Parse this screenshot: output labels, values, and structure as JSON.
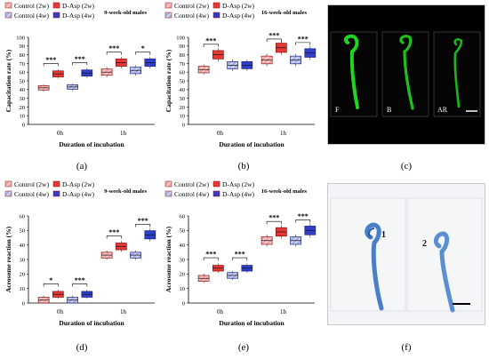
{
  "panel_labels": [
    "(a)",
    "(b)",
    "(c)",
    "(d)",
    "(e)",
    "(f)"
  ],
  "legend": {
    "control_2w": "Control (2w)",
    "daspa_2w": "D-Asp (2w)",
    "control_4w": "Control (4w)",
    "daspa_4w": "D-Asp (4w)"
  },
  "colors": {
    "control_2w": "#f4a7a7",
    "daspa_2w": "#e53935",
    "control_4w": "#aab3e8",
    "daspa_4w": "#2f3fc9",
    "fluorescence": "#1fd61f",
    "stain": "#5b8fd1"
  },
  "chart_data": [
    {
      "type": "box",
      "title": "9-week-old males",
      "ylabel": "Capacitation rate (%)",
      "xlabel": "Duration of incubation",
      "categories": [
        "0h",
        "1h"
      ],
      "ylim": [
        0,
        100
      ],
      "yticks": [
        0,
        10,
        20,
        30,
        40,
        50,
        60,
        70,
        80,
        90,
        100
      ],
      "series": [
        {
          "name": "Control (2w)",
          "values": [
            42,
            60
          ]
        },
        {
          "name": "D-Asp (2w)",
          "values": [
            58,
            71
          ]
        },
        {
          "name": "Control (4w)",
          "values": [
            43,
            62
          ]
        },
        {
          "name": "D-Asp (4w)",
          "values": [
            59,
            71
          ]
        }
      ],
      "significance": [
        [
          "***",
          "***"
        ],
        [
          "***",
          "*"
        ]
      ]
    },
    {
      "type": "box",
      "title": "16-week-old males",
      "ylabel": "Capacitation rate (%)",
      "xlabel": "Duration of incubation",
      "categories": [
        "0h",
        "1h"
      ],
      "ylim": [
        0,
        100
      ],
      "yticks": [
        0,
        10,
        20,
        30,
        40,
        50,
        60,
        70,
        80,
        90,
        100
      ],
      "series": [
        {
          "name": "Control (2w)",
          "values": [
            63,
            74
          ]
        },
        {
          "name": "D-Asp (2w)",
          "values": [
            80,
            88
          ]
        },
        {
          "name": "Control (4w)",
          "values": [
            68,
            74
          ]
        },
        {
          "name": "D-Asp (4w)",
          "values": [
            68,
            82
          ]
        }
      ],
      "significance": [
        [
          "***",
          ""
        ],
        [
          "***",
          "***"
        ]
      ]
    },
    {
      "type": "box",
      "title": "9-week-old males",
      "ylabel": "Acrosome reaction (%)",
      "xlabel": "Duration of incubation",
      "categories": [
        "0h",
        "1h"
      ],
      "ylim": [
        0,
        60
      ],
      "yticks": [
        0,
        10,
        20,
        30,
        40,
        50,
        60
      ],
      "series": [
        {
          "name": "Control (2w)",
          "values": [
            2,
            33
          ]
        },
        {
          "name": "D-Asp (2w)",
          "values": [
            6,
            39
          ]
        },
        {
          "name": "Control (4w)",
          "values": [
            2,
            33
          ]
        },
        {
          "name": "D-Asp (4w)",
          "values": [
            6,
            47
          ]
        }
      ],
      "significance": [
        [
          "*",
          "***"
        ],
        [
          "***",
          "***"
        ]
      ]
    },
    {
      "type": "box",
      "title": "16-week-old males",
      "ylabel": "Acrosome reaction (%)",
      "xlabel": "Duration of incubation",
      "categories": [
        "0h",
        "1h"
      ],
      "ylim": [
        0,
        60
      ],
      "yticks": [
        0,
        10,
        20,
        30,
        40,
        50,
        60
      ],
      "series": [
        {
          "name": "Control (2w)",
          "values": [
            17,
            43
          ]
        },
        {
          "name": "D-Asp (2w)",
          "values": [
            24,
            49
          ]
        },
        {
          "name": "Control (4w)",
          "values": [
            19,
            43
          ]
        },
        {
          "name": "D-Asp (4w)",
          "values": [
            24,
            50
          ]
        }
      ],
      "significance": [
        [
          "***",
          "***"
        ],
        [
          "***",
          "***"
        ]
      ]
    }
  ],
  "micrographs_c": [
    "F",
    "B",
    "AR"
  ],
  "micrographs_f": [
    "1",
    "2"
  ]
}
